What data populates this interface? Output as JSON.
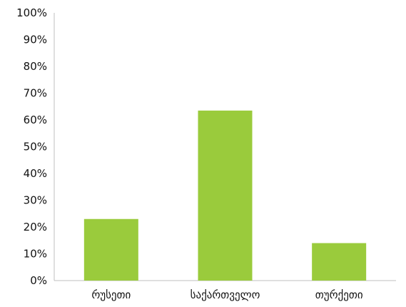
{
  "chart_data": {
    "type": "bar",
    "title": "",
    "xlabel": "",
    "ylabel": "",
    "categories": [
      "რუსეთი",
      "საქართველო",
      "თურქეთი"
    ],
    "values": [
      0.23,
      0.635,
      0.14
    ],
    "ylim": [
      0,
      1
    ],
    "yticks": [
      0,
      0.1,
      0.2,
      0.3,
      0.4,
      0.5,
      0.6,
      0.7,
      0.8,
      0.9,
      1.0
    ],
    "ytick_labels": [
      "0%",
      "10%",
      "20%",
      "30%",
      "40%",
      "50%",
      "60%",
      "70%",
      "80%",
      "90%",
      "100%"
    ],
    "grid": false,
    "legend": "none",
    "colors": {
      "bar": "#9acb3c",
      "axis": "#bfbfbf",
      "text": "#111111"
    }
  }
}
